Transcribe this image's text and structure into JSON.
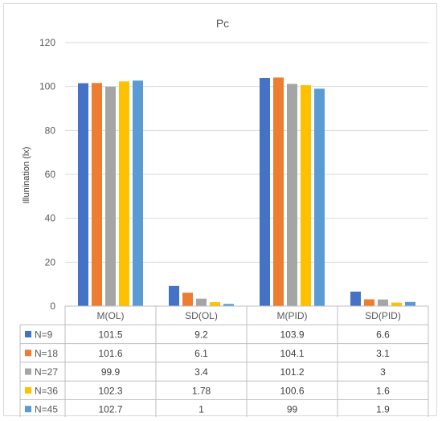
{
  "chart_data": {
    "type": "bar",
    "title": "Pc",
    "xlabel": "",
    "ylabel": "Illunination (lx)",
    "ylim": [
      0,
      120
    ],
    "yticks": [
      0,
      20,
      40,
      60,
      80,
      100,
      120
    ],
    "grid": true,
    "legend": "data-table",
    "categories": [
      "M(OL)",
      "SD(OL)",
      "M(PID)",
      "SD(PID)"
    ],
    "series": [
      {
        "name": "N=9",
        "color": "#4472c4",
        "values": [
          101.5,
          9.2,
          103.9,
          6.6
        ],
        "labels": [
          "101.5",
          "9.2",
          "103.9",
          "6.6"
        ]
      },
      {
        "name": "N=18",
        "color": "#ed7d31",
        "values": [
          101.6,
          6.1,
          104.1,
          3.1
        ],
        "labels": [
          "101.6",
          "6.1",
          "104.1",
          "3.1"
        ]
      },
      {
        "name": "N=27",
        "color": "#a5a5a5",
        "values": [
          99.9,
          3.4,
          101.2,
          3
        ],
        "labels": [
          "99.9",
          "3.4",
          "101.2",
          "3"
        ]
      },
      {
        "name": "N=36",
        "color": "#ffc000",
        "values": [
          102.3,
          1.78,
          100.6,
          1.6
        ],
        "labels": [
          "102.3",
          "1.78",
          "100.6",
          "1.6"
        ]
      },
      {
        "name": "N=45",
        "color": "#5b9bd5",
        "values": [
          102.7,
          1,
          99,
          1.9
        ],
        "labels": [
          "102.7",
          "1",
          "99",
          "1.9"
        ]
      }
    ]
  }
}
